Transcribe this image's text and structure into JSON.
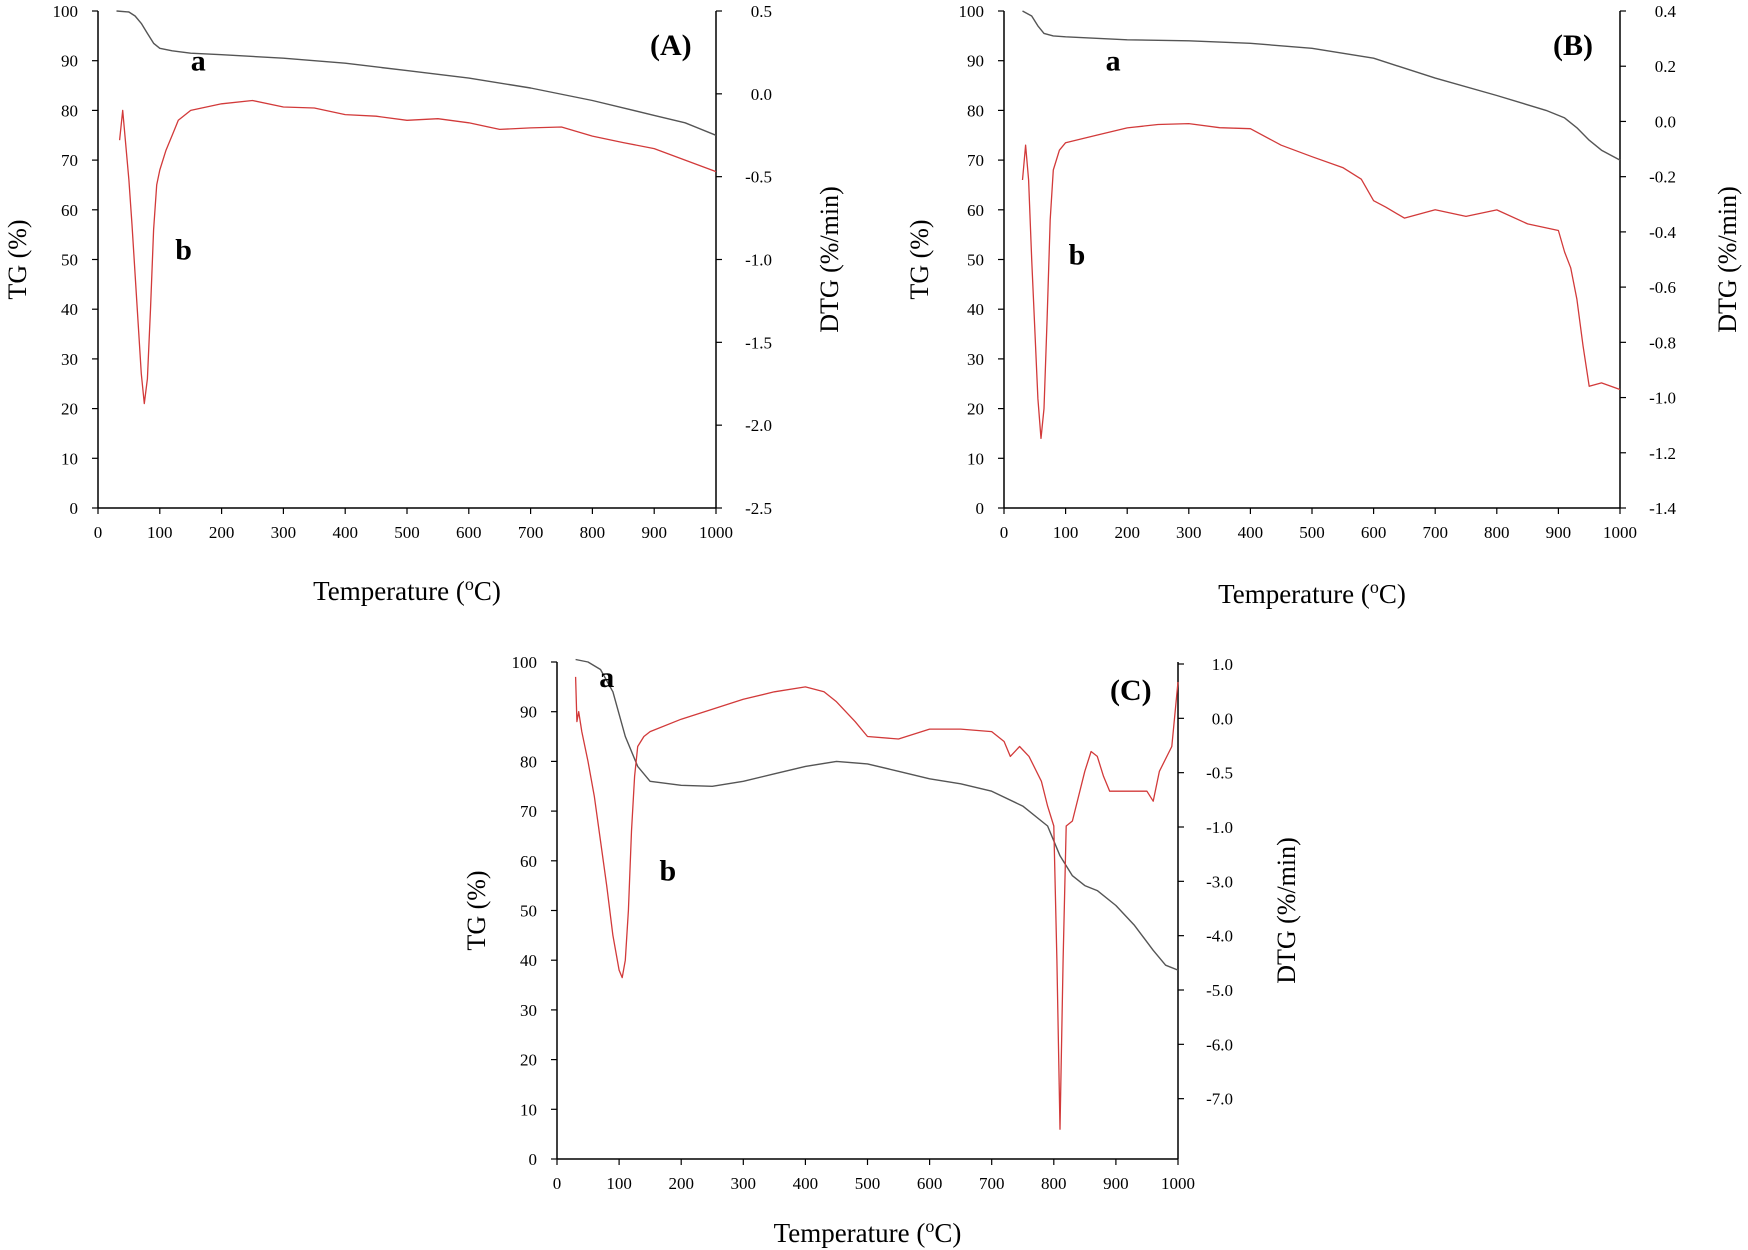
{
  "chart_data": [
    {
      "type": "line",
      "panel_label": "(A)",
      "xlabel": "Temperature (",
      "xlabel_sup": "o",
      "xlabel_tail": "C)",
      "ylabel_left": "TG (%)",
      "ylabel_right": "DTG (%/min)",
      "xlim": [
        0,
        1000
      ],
      "ylim_left": [
        0,
        100
      ],
      "ylim_right": [
        -2.5,
        0.5
      ],
      "x_ticks": [
        "0",
        "100",
        "200",
        "300",
        "400",
        "500",
        "600",
        "700",
        "800",
        "900",
        "1000"
      ],
      "y_left_ticks": [
        "0",
        "10",
        "20",
        "30",
        "40",
        "50",
        "60",
        "70",
        "80",
        "90",
        "100"
      ],
      "y_right_ticks": [
        {
          "v": 0.5,
          "label": "0.5"
        },
        {
          "v": 0.0,
          "label": "0.0"
        },
        {
          "v": -0.5,
          "label": "-0.5"
        },
        {
          "v": -1.0,
          "label": "-1.0"
        },
        {
          "v": -1.5,
          "label": "-1.5"
        },
        {
          "v": -2.0,
          "label": "-2.0"
        },
        {
          "v": -2.5,
          "label": "-2.5"
        }
      ],
      "series": [
        {
          "name": "a",
          "label": "a",
          "axis": "left",
          "color": "#555555",
          "x": [
            30,
            50,
            60,
            70,
            80,
            90,
            100,
            120,
            150,
            200,
            300,
            400,
            500,
            600,
            700,
            800,
            900,
            950,
            1000
          ],
          "y": [
            100,
            99.8,
            99,
            97.5,
            95.5,
            93.5,
            92.5,
            92,
            91.5,
            91.2,
            90.5,
            89.5,
            88,
            86.5,
            84.5,
            82,
            79,
            77.5,
            75
          ],
          "label_at": [
            150,
            88
          ]
        },
        {
          "name": "b",
          "label": "b",
          "axis": "left",
          "color": "#d23a3a",
          "x": [
            35,
            40,
            45,
            50,
            55,
            60,
            65,
            70,
            75,
            80,
            85,
            90,
            95,
            100,
            110,
            120,
            130,
            150,
            200,
            250,
            300,
            350,
            400,
            450,
            500,
            550,
            600,
            650,
            700,
            750,
            800,
            850,
            900,
            950,
            1000
          ],
          "y": [
            74,
            80,
            73,
            66,
            57,
            47,
            37,
            27,
            21,
            26,
            40,
            56,
            65,
            68,
            72,
            75,
            78,
            80,
            81,
            82,
            81,
            80,
            79,
            79,
            78.5,
            78,
            77.5,
            76.5,
            76,
            76.5,
            75,
            74,
            72,
            70,
            68
          ],
          "label_at": [
            125,
            50
          ]
        }
      ]
    },
    {
      "type": "line",
      "panel_label": "(B)",
      "xlabel": "Temperature (",
      "xlabel_sup": "o",
      "xlabel_tail": "C)",
      "ylabel_left": "TG (%)",
      "ylabel_right": "DTG (%/min)",
      "xlim": [
        0,
        1000
      ],
      "ylim_left": [
        0,
        100
      ],
      "ylim_right": [
        -1.4,
        0.4
      ],
      "x_ticks": [
        "0",
        "100",
        "200",
        "300",
        "400",
        "500",
        "600",
        "700",
        "800",
        "900",
        "1000"
      ],
      "y_left_ticks": [
        "0",
        "10",
        "20",
        "30",
        "40",
        "50",
        "60",
        "70",
        "80",
        "90",
        "100"
      ],
      "y_right_ticks": [
        {
          "v": 0.4,
          "label": "0.4"
        },
        {
          "v": 0.2,
          "label": "0.2"
        },
        {
          "v": 0.0,
          "label": "0.0"
        },
        {
          "v": -0.2,
          "label": "-0.2"
        },
        {
          "v": -0.4,
          "label": "-0.4"
        },
        {
          "v": -0.6,
          "label": "-0.6"
        },
        {
          "v": -0.8,
          "label": "-0.8"
        },
        {
          "v": -1.0,
          "label": "-1.0"
        },
        {
          "v": -1.2,
          "label": "-1.2"
        },
        {
          "v": -1.4,
          "label": "-1.4"
        }
      ],
      "series": [
        {
          "name": "a",
          "label": "a",
          "axis": "left",
          "color": "#555555",
          "x": [
            30,
            45,
            55,
            65,
            80,
            100,
            200,
            300,
            400,
            500,
            600,
            700,
            800,
            880,
            910,
            930,
            950,
            970,
            1000
          ],
          "y": [
            100,
            99,
            97,
            95.5,
            95,
            94.8,
            94.2,
            94,
            93.5,
            92.5,
            90.5,
            86.5,
            83,
            80,
            78.5,
            76.5,
            74,
            72,
            70
          ],
          "label_at": [
            165,
            88
          ]
        },
        {
          "name": "b",
          "label": "b",
          "axis": "left",
          "color": "#d23a3a",
          "x": [
            30,
            35,
            40,
            45,
            50,
            55,
            60,
            65,
            70,
            75,
            80,
            90,
            100,
            150,
            200,
            250,
            300,
            350,
            400,
            450,
            500,
            550,
            580,
            600,
            620,
            650,
            700,
            750,
            800,
            850,
            900,
            910,
            920,
            930,
            940,
            950,
            970,
            1000
          ],
          "y": [
            66,
            73,
            66,
            50,
            36,
            22,
            14,
            20,
            38,
            58,
            68,
            72,
            73.5,
            75,
            76,
            77,
            77.5,
            77,
            76,
            73,
            71,
            68,
            66,
            62,
            61,
            58,
            60,
            59,
            59.5,
            57,
            56,
            52,
            48,
            42,
            33,
            24,
            25,
            24
          ],
          "label_at": [
            105,
            49
          ]
        }
      ]
    },
    {
      "type": "line",
      "panel_label": "(C)",
      "xlabel": "Temperature (",
      "xlabel_sup": "o",
      "xlabel_tail": "C)",
      "ylabel_left": "TG (%)",
      "ylabel_right": "DTG (%/min)",
      "xlim": [
        0,
        1000
      ],
      "ylim_left": [
        0,
        100
      ],
      "ylim_right": [
        -8.0,
        1.0
      ],
      "x_ticks": [
        "0",
        "100",
        "200",
        "300",
        "400",
        "500",
        "600",
        "700",
        "800",
        "900",
        "1000"
      ],
      "y_left_ticks": [
        "0",
        "10",
        "20",
        "30",
        "40",
        "50",
        "60",
        "70",
        "80",
        "90",
        "100"
      ],
      "y_right_ticks": [
        {
          "v": 1.0,
          "label": "1.0"
        },
        {
          "v": 0.0,
          "label": "0.0"
        },
        {
          "v": -0.5,
          "label": "-0.5"
        },
        {
          "v": -1.0,
          "label": "-1.0"
        },
        {
          "v": -3.0,
          "label": "-3.0"
        },
        {
          "v": -4.0,
          "label": "-4.0"
        },
        {
          "v": -5.0,
          "label": "-5.0"
        },
        {
          "v": -6.0,
          "label": "-6.0"
        },
        {
          "v": -7.0,
          "label": "-7.0"
        }
      ],
      "series": [
        {
          "name": "a",
          "label": "a",
          "axis": "left",
          "color": "#555555",
          "x": [
            30,
            50,
            70,
            90,
            110,
            130,
            150,
            200,
            250,
            300,
            350,
            400,
            450,
            500,
            550,
            600,
            650,
            700,
            750,
            790,
            810,
            830,
            850,
            870,
            900,
            930,
            960,
            980,
            1000
          ],
          "y": [
            100.5,
            100,
            98.5,
            94,
            85,
            79,
            76,
            75.2,
            75,
            76,
            77.5,
            79,
            80,
            79.5,
            78,
            76.5,
            75.5,
            74,
            71,
            67,
            61,
            57,
            55,
            54,
            51,
            47,
            42,
            39,
            38
          ],
          "label_at": [
            68,
            95
          ]
        },
        {
          "name": "b",
          "label": "b",
          "axis": "left",
          "color": "#d23a3a",
          "x": [
            30,
            32,
            35,
            40,
            50,
            60,
            70,
            80,
            90,
            100,
            105,
            110,
            115,
            120,
            125,
            130,
            140,
            150,
            200,
            250,
            300,
            350,
            400,
            430,
            450,
            480,
            500,
            550,
            600,
            650,
            700,
            720,
            730,
            745,
            760,
            780,
            790,
            800,
            805,
            810,
            815,
            820,
            830,
            850,
            860,
            870,
            880,
            890,
            900,
            950,
            960,
            970,
            990,
            1000
          ],
          "y": [
            97,
            88,
            90,
            86,
            80,
            73,
            64,
            55,
            45,
            38,
            36.5,
            40,
            50,
            66,
            77,
            83,
            85,
            86,
            88.5,
            90.5,
            92.5,
            94,
            95,
            94,
            92,
            88,
            85,
            84.5,
            86.5,
            86.5,
            86,
            84,
            81,
            83,
            81,
            76,
            71,
            67,
            40,
            6,
            40,
            67,
            68,
            78,
            82,
            81,
            77,
            74,
            74,
            74,
            72,
            78,
            83,
            96
          ],
          "label_at": [
            165,
            56
          ]
        }
      ]
    }
  ]
}
